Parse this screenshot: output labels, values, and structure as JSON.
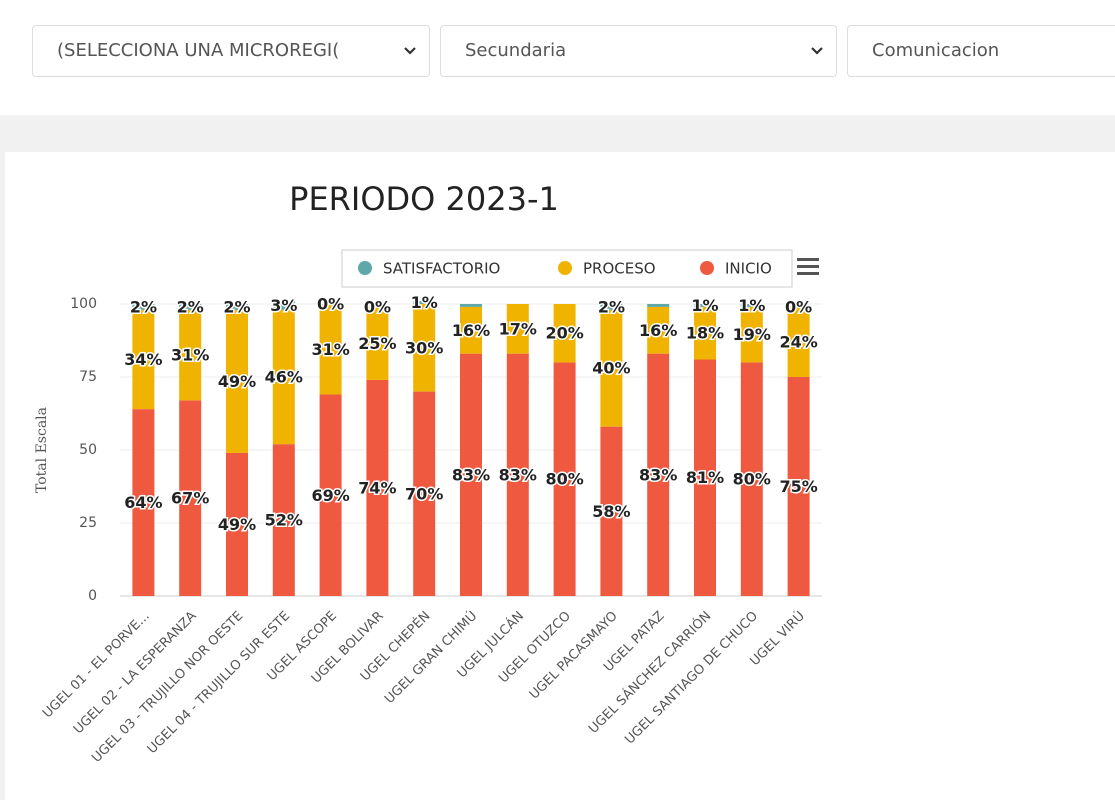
{
  "filters": [
    "(SELECCIONA UNA MICROREGI(",
    "Secundaria",
    "Comunicacion"
  ],
  "chart_data": {
    "type": "stacked-bar",
    "title": "PERIODO 2023-1",
    "y_label": "Total Escala",
    "categories": [
      "UGEL 01 - EL PORVE...",
      "UGEL 02 - LA ESPERANZA",
      "UGEL 03 - TRUJILLO NOR OESTE",
      "UGEL 04 - TRUJILLO SUR ESTE",
      "UGEL ASCOPE",
      "UGEL BOLIVAR",
      "UGEL CHEPÉN",
      "UGEL GRAN CHIMÚ",
      "UGEL JULCÁN",
      "UGEL OTUZCO",
      "UGEL PACASMAYO",
      "UGEL PATAZ",
      "UGEL SÁNCHEZ CARRIÓN",
      "UGEL SANTIAGO DE CHUCO",
      "UGEL VIRÚ"
    ],
    "series": [
      {
        "name": "SATISFACTORIO",
        "color": "#5fa8a8",
        "values": [
          2,
          2,
          2,
          3,
          0,
          0,
          1,
          1,
          0,
          0,
          2,
          1,
          1,
          1,
          0
        ],
        "value_labels": [
          "2%",
          "2%",
          "2%",
          "3%",
          "0%",
          "0%",
          "1%",
          null,
          null,
          null,
          "2%",
          null,
          "1%",
          "1%",
          "0%"
        ]
      },
      {
        "name": "PROCESO",
        "color": "#f0b400",
        "values": [
          34,
          31,
          49,
          46,
          31,
          25,
          30,
          16,
          17,
          20,
          40,
          16,
          18,
          19,
          24
        ],
        "value_labels": [
          "34%",
          "31%",
          "49%",
          "46%",
          "31%",
          "25%",
          "30%",
          "16%",
          "17%",
          "20%",
          "40%",
          "16%",
          "18%",
          "19%",
          "24%"
        ]
      },
      {
        "name": "INICIO",
        "color": "#ef5940",
        "values": [
          64,
          67,
          49,
          52,
          69,
          74,
          70,
          83,
          83,
          80,
          58,
          83,
          81,
          80,
          75
        ],
        "value_labels": [
          "64%",
          "67%",
          "49%",
          "52%",
          "69%",
          "74%",
          "70%",
          "83%",
          "83%",
          "80%",
          "58%",
          "83%",
          "81%",
          "80%",
          "75%"
        ]
      }
    ],
    "ylim": [
      0,
      100
    ],
    "yticks": [
      0,
      25,
      50,
      75,
      100
    ],
    "grid": true
  }
}
